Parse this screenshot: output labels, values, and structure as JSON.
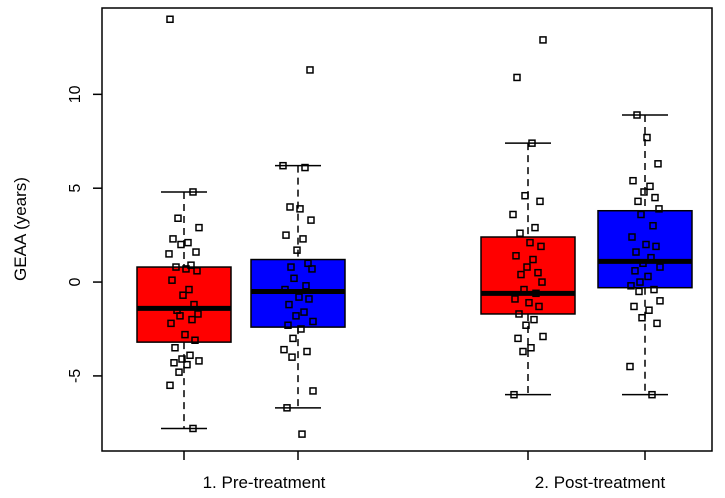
{
  "chart_data": {
    "type": "box",
    "title": "",
    "xlabel": "",
    "ylabel": "GEAA (years)",
    "ylim": [
      -9.0,
      14.6
    ],
    "y_ticks": [
      -5,
      0,
      5,
      10
    ],
    "y_tick_labels": [
      "-5",
      "0",
      "5",
      "10"
    ],
    "categories": [
      "1. Pre-treatment",
      "2. Post-treatment"
    ],
    "groups": [
      {
        "category": "1. Pre-treatment",
        "boxes": [
          {
            "color": "#ff0000",
            "whisker_low": -7.8,
            "q1": -3.2,
            "median": -1.4,
            "q3": 0.8,
            "whisker_high": 4.8,
            "points": [
              14.0,
              4.8,
              3.4,
              2.9,
              2.3,
              2.1,
              2.0,
              1.6,
              1.5,
              0.9,
              0.8,
              0.7,
              0.6,
              0.1,
              -0.4,
              -0.7,
              -1.2,
              -1.5,
              -1.7,
              -1.8,
              -2.0,
              -2.2,
              -2.8,
              -3.1,
              -3.5,
              -3.9,
              -4.1,
              -4.2,
              -4.3,
              -4.4,
              -4.8,
              -5.5,
              -7.8
            ]
          },
          {
            "color": "#0000ff",
            "whisker_low": -6.7,
            "q1": -2.4,
            "median": -0.5,
            "q3": 1.2,
            "whisker_high": 6.2,
            "points": [
              11.3,
              6.2,
              6.1,
              4.0,
              3.9,
              3.3,
              2.5,
              2.3,
              1.7,
              1.0,
              0.8,
              0.7,
              0.2,
              -0.2,
              -0.4,
              -0.8,
              -0.9,
              -1.2,
              -1.6,
              -1.8,
              -2.1,
              -2.3,
              -2.5,
              -3.0,
              -3.6,
              -3.7,
              -4.0,
              -5.8,
              -6.7,
              -8.1
            ]
          }
        ]
      },
      {
        "category": "2. Post-treatment",
        "boxes": [
          {
            "color": "#ff0000",
            "whisker_low": -6.0,
            "q1": -1.7,
            "median": -0.6,
            "q3": 2.4,
            "whisker_high": 7.4,
            "points": [
              12.9,
              10.9,
              7.4,
              4.6,
              4.3,
              3.6,
              2.9,
              2.6,
              2.1,
              1.9,
              1.4,
              1.2,
              0.8,
              0.5,
              0.4,
              0.0,
              -0.4,
              -0.6,
              -0.9,
              -1.1,
              -1.3,
              -1.7,
              -2.0,
              -2.3,
              -2.9,
              -3.0,
              -3.5,
              -3.7,
              -6.0
            ]
          },
          {
            "color": "#0000ff",
            "whisker_low": -6.0,
            "q1": -0.3,
            "median": 1.1,
            "q3": 3.8,
            "whisker_high": 8.9,
            "points": [
              8.9,
              7.7,
              6.3,
              5.4,
              5.1,
              4.8,
              4.5,
              4.3,
              3.9,
              3.6,
              3.0,
              2.4,
              2.0,
              1.9,
              1.6,
              1.3,
              1.0,
              0.8,
              0.6,
              0.3,
              0.0,
              -0.2,
              -0.4,
              -0.5,
              -1.0,
              -1.3,
              -1.5,
              -1.9,
              -2.2,
              -4.5,
              -6.0
            ]
          }
        ]
      }
    ],
    "grid": false,
    "legend": "none"
  }
}
